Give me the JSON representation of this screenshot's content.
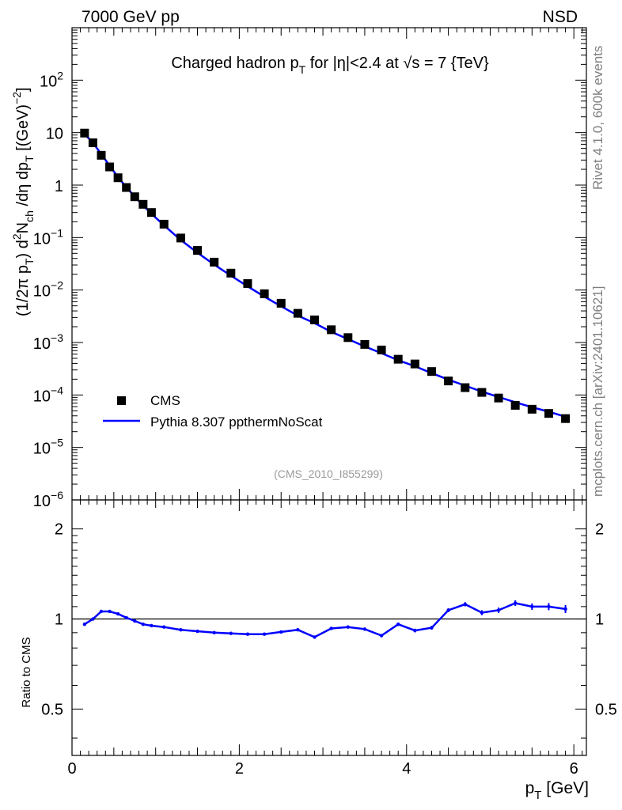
{
  "header": {
    "left": "7000 GeV pp",
    "right": "NSD"
  },
  "side_labels": {
    "top": "Rivet 4.1.0,  600k events",
    "bottom": "mcplots.cern.ch [arXiv:2401.10621]"
  },
  "chart_data": [
    {
      "type": "scatter",
      "panel": "main",
      "title": {
        "a": "Charged hadron p",
        "sub": "T",
        "b": " for |η|<2.4 at √s = 7 {TeV}"
      },
      "ylabel": "(1/2π p_T) d²N_ch /dη  dp_T [(GeV)⁻²]",
      "yscale": "log",
      "xlim": [
        0,
        6.15
      ],
      "ylim": [
        1e-06,
        1000
      ],
      "y_tick_labels": [
        {
          "v": 1e-06,
          "base": "10",
          "exp": "−6"
        },
        {
          "v": 1e-05,
          "base": "10",
          "exp": "−5"
        },
        {
          "v": 0.0001,
          "base": "10",
          "exp": "−4"
        },
        {
          "v": 0.001,
          "base": "10",
          "exp": "−3"
        },
        {
          "v": 0.01,
          "base": "10",
          "exp": "−2"
        },
        {
          "v": 0.1,
          "base": "10",
          "exp": "−1"
        },
        {
          "v": 1,
          "base": "1",
          "exp": ""
        },
        {
          "v": 10,
          "base": "10",
          "exp": ""
        },
        {
          "v": 100,
          "base": "10",
          "exp": "2"
        }
      ],
      "watermark": "(CMS_2010_I855299)",
      "legend": [
        {
          "name": "CMS",
          "style": "marker"
        },
        {
          "name": "Pythia 8.307 ppthermNoScat",
          "style": "line"
        }
      ],
      "series": [
        {
          "name": "CMS",
          "color": "#000000",
          "x": [
            0.15,
            0.25,
            0.35,
            0.45,
            0.55,
            0.65,
            0.75,
            0.85,
            0.95,
            1.1,
            1.3,
            1.5,
            1.7,
            1.9,
            2.1,
            2.3,
            2.5,
            2.7,
            2.9,
            3.1,
            3.3,
            3.5,
            3.7,
            3.9,
            4.1,
            4.3,
            4.5,
            4.7,
            4.9,
            5.1,
            5.3,
            5.5,
            5.7,
            5.9
          ],
          "y": [
            9.8,
            6.4,
            3.7,
            2.22,
            1.38,
            0.9,
            0.6,
            0.43,
            0.3,
            0.18,
            0.098,
            0.057,
            0.034,
            0.021,
            0.0133,
            0.0085,
            0.0056,
            0.0036,
            0.0027,
            0.00175,
            0.00124,
            0.00092,
            0.00072,
            0.00048,
            0.00039,
            0.00028,
            0.000185,
            0.000138,
            0.000112,
            8.75e-05,
            6.35e-05,
            5.35e-05,
            4.45e-05,
            3.55e-05
          ]
        },
        {
          "name": "Pythia 8.307 ppthermNoScat",
          "color": "#0000ff",
          "x": [
            0.15,
            0.25,
            0.35,
            0.45,
            0.55,
            0.65,
            0.75,
            0.85,
            0.95,
            1.1,
            1.3,
            1.5,
            1.7,
            1.9,
            2.1,
            2.3,
            2.5,
            2.7,
            2.9,
            3.1,
            3.3,
            3.5,
            3.7,
            3.9,
            4.1,
            4.3,
            4.5,
            4.7,
            4.9,
            5.1,
            5.3,
            5.5,
            5.7,
            5.9
          ],
          "y": [
            9.4,
            6.4,
            3.9,
            2.33,
            1.42,
            0.91,
            0.6,
            0.41,
            0.285,
            0.17,
            0.09,
            0.0515,
            0.0305,
            0.0188,
            0.0117,
            0.0075,
            0.0049,
            0.00325,
            0.00234,
            0.0016,
            0.00116,
            0.00084,
            0.000625,
            0.00046,
            0.000353,
            0.000261,
            0.000196,
            0.000151,
            0.000116,
            9.15e-05,
            7.25e-05,
            5.85e-05,
            4.8e-05,
            3.85e-05
          ]
        }
      ]
    },
    {
      "type": "line",
      "panel": "ratio",
      "ylabel": "Ratio to CMS",
      "xlabel": {
        "a": "p",
        "sub": "T",
        "b": " [GeV]"
      },
      "yscale": "log",
      "xlim": [
        0,
        6.15
      ],
      "ylim": [
        0.35,
        2.5
      ],
      "x_tick_labels": [
        0,
        2,
        4,
        6
      ],
      "y_tick_labels": [
        0.5,
        1,
        2
      ],
      "reference_line": 1,
      "series": [
        {
          "name": "Pythia 8.307 ppthermNoScat / CMS",
          "color": "#0000ff",
          "x": [
            0.15,
            0.25,
            0.35,
            0.45,
            0.55,
            0.65,
            0.75,
            0.85,
            0.95,
            1.1,
            1.3,
            1.5,
            1.7,
            1.9,
            2.1,
            2.3,
            2.5,
            2.7,
            2.9,
            3.1,
            3.3,
            3.5,
            3.7,
            3.9,
            4.1,
            4.3,
            4.5,
            4.7,
            4.9,
            5.1,
            5.3,
            5.5,
            5.7,
            5.9
          ],
          "y": [
            0.96,
            1.0,
            1.06,
            1.06,
            1.04,
            1.01,
            0.985,
            0.96,
            0.95,
            0.94,
            0.92,
            0.91,
            0.9,
            0.895,
            0.89,
            0.89,
            0.905,
            0.92,
            0.87,
            0.93,
            0.94,
            0.925,
            0.88,
            0.96,
            0.915,
            0.935,
            1.07,
            1.12,
            1.05,
            1.07,
            1.13,
            1.1,
            1.1,
            1.08
          ],
          "err": [
            0.004,
            0.004,
            0.004,
            0.004,
            0.004,
            0.004,
            0.004,
            0.004,
            0.004,
            0.004,
            0.004,
            0.004,
            0.004,
            0.004,
            0.005,
            0.005,
            0.006,
            0.007,
            0.008,
            0.008,
            0.009,
            0.01,
            0.01,
            0.012,
            0.013,
            0.014,
            0.016,
            0.018,
            0.02,
            0.022,
            0.025,
            0.027,
            0.03,
            0.033
          ]
        }
      ]
    }
  ]
}
